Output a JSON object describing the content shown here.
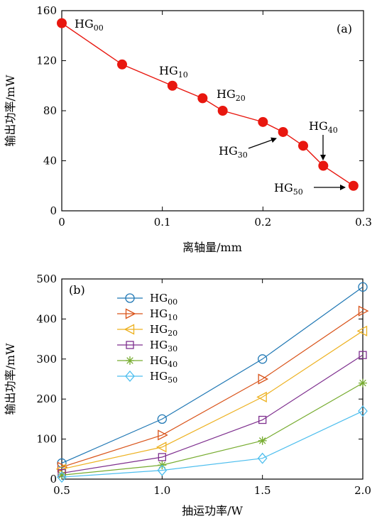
{
  "colors": {
    "panel_a_line": "#e8170f",
    "panel_a_marker": "#e8170f",
    "axis": "#000000",
    "arrow": "#000000"
  },
  "chart_data": [
    {
      "type": "line",
      "panel_label": "(a)",
      "xlabel": "离轴量/mm",
      "ylabel": "输出功率/mW",
      "xlim": [
        0,
        0.3
      ],
      "ylim": [
        0,
        160
      ],
      "xticks": [
        0,
        0.1,
        0.2,
        0.3
      ],
      "xtick_labels": [
        "0",
        "0.1",
        "0.2",
        "0.3"
      ],
      "yticks": [
        0,
        40,
        80,
        120,
        160
      ],
      "ytick_labels": [
        "0",
        "40",
        "80",
        "120",
        "160"
      ],
      "grid": false,
      "series": [
        {
          "color": "#e8170f",
          "marker": "filled-circle",
          "x": [
            0,
            0.06,
            0.11,
            0.14,
            0.16,
            0.2,
            0.22,
            0.24,
            0.26,
            0.29
          ],
          "y": [
            150,
            117,
            100,
            90,
            80,
            71,
            63,
            52,
            36,
            20
          ]
        }
      ],
      "annotations": [
        {
          "base": "HG",
          "sub": "00",
          "arrow": false
        },
        {
          "base": "HG",
          "sub": "10",
          "arrow": false
        },
        {
          "base": "HG",
          "sub": "20",
          "arrow": false
        },
        {
          "base": "HG",
          "sub": "30",
          "arrow": true
        },
        {
          "base": "HG",
          "sub": "40",
          "arrow": true
        },
        {
          "base": "HG",
          "sub": "50",
          "arrow": true
        }
      ]
    },
    {
      "type": "line",
      "panel_label": "(b)",
      "xlabel": "抽运功率/W",
      "ylabel": "输出功率/mW",
      "xlim": [
        0.5,
        2.0
      ],
      "ylim": [
        0,
        500
      ],
      "xticks": [
        0.5,
        1.0,
        1.5,
        2.0
      ],
      "xtick_labels": [
        "0.5",
        "1.0",
        "1.5",
        "2.0"
      ],
      "yticks": [
        0,
        100,
        200,
        300,
        400,
        500
      ],
      "ytick_labels": [
        "0",
        "100",
        "200",
        "300",
        "400",
        "500"
      ],
      "grid": false,
      "legend_position": "top-left",
      "x": [
        0.5,
        1.0,
        1.5,
        2.0
      ],
      "series": [
        {
          "name_base": "HG",
          "name_sub": "00",
          "color": "#1f77b4",
          "marker": "circle",
          "values": [
            40,
            150,
            300,
            480
          ]
        },
        {
          "name_base": "HG",
          "name_sub": "10",
          "color": "#d95319",
          "marker": "triangle-right",
          "values": [
            30,
            110,
            250,
            420
          ]
        },
        {
          "name_base": "HG",
          "name_sub": "20",
          "color": "#edb120",
          "marker": "triangle-left",
          "values": [
            25,
            80,
            205,
            370
          ]
        },
        {
          "name_base": "HG",
          "name_sub": "30",
          "color": "#7e2f8e",
          "marker": "square",
          "values": [
            15,
            55,
            148,
            310
          ]
        },
        {
          "name_base": "HG",
          "name_sub": "40",
          "color": "#77ac30",
          "marker": "asterisk",
          "values": [
            10,
            35,
            96,
            240
          ]
        },
        {
          "name_base": "HG",
          "name_sub": "50",
          "color": "#4dbeee",
          "marker": "diamond",
          "values": [
            5,
            22,
            52,
            170
          ]
        }
      ]
    }
  ]
}
